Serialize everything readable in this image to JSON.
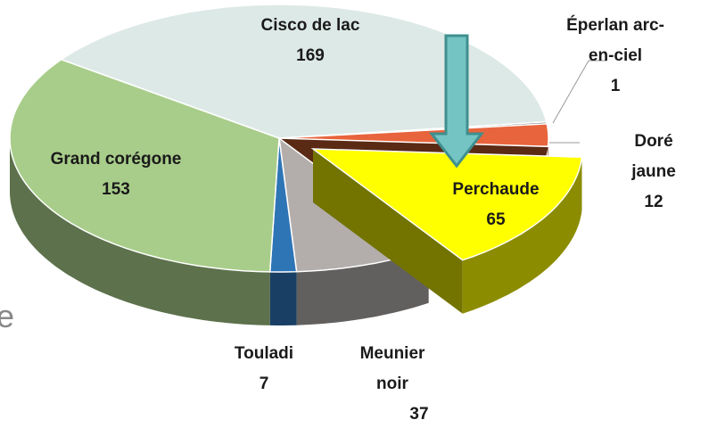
{
  "chart_data": {
    "type": "pie3d",
    "categories": [
      "Cisco de lac",
      "Éperlan arc-en-ciel",
      "Doré jaune",
      "Perchaude",
      "Meunier noir",
      "Touladi",
      "Grand corégone"
    ],
    "values": [
      169,
      1,
      12,
      65,
      37,
      7,
      153
    ],
    "colors": [
      "#dde9e6",
      "#6f6f6f",
      "#e8643c",
      "#ffff00",
      "#b3aeac",
      "#2e75b6",
      "#a8cd8a"
    ],
    "exploded": "Perchaude"
  },
  "edge_text": "e"
}
